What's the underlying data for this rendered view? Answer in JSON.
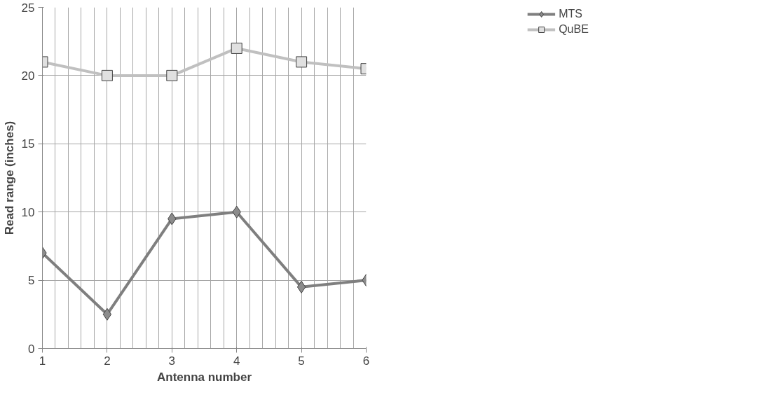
{
  "chart_data": {
    "type": "line",
    "xlabel": "Antenna number",
    "ylabel": "Read range (inches)",
    "x": [
      1,
      2,
      3,
      4,
      5,
      6
    ],
    "series": [
      {
        "name": "MTS",
        "color": "#7f7f7f",
        "marker": "diamond",
        "values": [
          7,
          2.5,
          9.5,
          10,
          4.5,
          5
        ]
      },
      {
        "name": "QuBE",
        "color": "#c0c0c0",
        "marker": "square",
        "values": [
          21,
          20,
          20,
          22,
          21,
          20.5
        ]
      }
    ],
    "xlim": [
      1,
      6
    ],
    "ylim": [
      0,
      25
    ],
    "xticks": [
      1,
      2,
      3,
      4,
      5,
      6
    ],
    "yticks": [
      0,
      5,
      10,
      15,
      20,
      25
    ],
    "grid": true,
    "legend": "top right",
    "line_style": "solid"
  }
}
